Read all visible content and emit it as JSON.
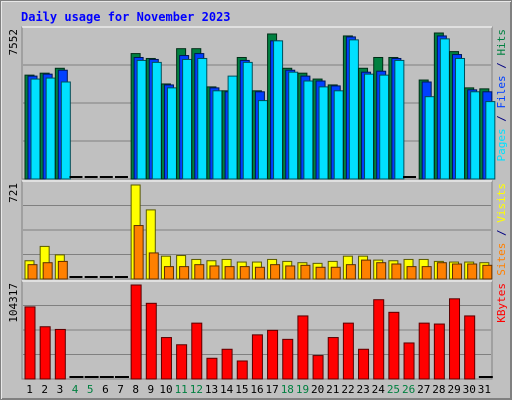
{
  "colors": {
    "background": "#c0c0c0",
    "panel": "#c0c0c0",
    "title": "#0000ff",
    "hits": "#008040",
    "files": "#0040ff",
    "pages": "#00e0ff",
    "visits": "#ffff00",
    "sites": "#ff8000",
    "kbytes": "#ff0000",
    "weekend_label": "#008040",
    "axis_label": "#000000"
  },
  "chart_data": {
    "type": "bar",
    "title": "Daily usage for November 2023",
    "categories": [
      "1",
      "2",
      "3",
      "4",
      "5",
      "6",
      "7",
      "8",
      "9",
      "10",
      "11",
      "12",
      "13",
      "14",
      "15",
      "16",
      "17",
      "18",
      "19",
      "20",
      "21",
      "22",
      "23",
      "24",
      "25",
      "26",
      "27",
      "28",
      "29",
      "30",
      "31"
    ],
    "weekend_days": [
      "4",
      "5",
      "11",
      "12",
      "18",
      "19",
      "25",
      "26"
    ],
    "panels": [
      {
        "ymax_label": "7552",
        "ymax": 7552,
        "legend": [
          "Pages",
          "Files",
          "Hits"
        ],
        "legend_sep": " / ",
        "series": [
          {
            "name": "Hits",
            "values": [
              5300,
              5400,
              5650,
              0,
              0,
              0,
              0,
              6400,
              6150,
              4850,
              6650,
              6650,
              4700,
              4500,
              6200,
              4500,
              7400,
              5650,
              5400,
              5100,
              4800,
              7300,
              5650,
              6200,
              6200,
              0,
              5050,
              7450,
              6500,
              4650,
              4600
            ]
          },
          {
            "name": "Files",
            "values": [
              5250,
              5350,
              5550,
              0,
              0,
              0,
              0,
              6200,
              6100,
              4800,
              6300,
              6400,
              4650,
              4450,
              6050,
              4450,
              7050,
              5550,
              5250,
              5000,
              4750,
              7250,
              5450,
              5500,
              6150,
              0,
              4950,
              7300,
              6350,
              4550,
              4450
            ]
          },
          {
            "name": "Pages",
            "values": [
              5100,
              5150,
              4950,
              0,
              0,
              0,
              0,
              6050,
              5950,
              4650,
              6100,
              6150,
              4500,
              5250,
              5950,
              4000,
              7050,
              5450,
              5000,
              4700,
              4500,
              7100,
              5350,
              5300,
              6050,
              0,
              4200,
              7150,
              6150,
              4450,
              3950
            ]
          }
        ]
      },
      {
        "ymax_label": "721",
        "ymax": 721,
        "legend": [
          "Sites",
          "Visits"
        ],
        "legend_sep": " / ",
        "series": [
          {
            "name": "Visits",
            "values": [
              140,
              250,
              185,
              0,
              0,
              0,
              0,
              721,
              530,
              175,
              180,
              150,
              140,
              150,
              130,
              130,
              150,
              135,
              125,
              120,
              135,
              175,
              175,
              145,
              140,
              150,
              150,
              135,
              130,
              130,
              125
            ]
          },
          {
            "name": "Sites",
            "values": [
              110,
              125,
              135,
              0,
              0,
              0,
              0,
              410,
              200,
              95,
              95,
              110,
              100,
              95,
              95,
              90,
              110,
              100,
              105,
              90,
              90,
              110,
              145,
              125,
              115,
              95,
              95,
              125,
              115,
              115,
              105
            ]
          }
        ]
      },
      {
        "ymax_label": "104317",
        "ymax": 104317,
        "legend": [
          "KBytes"
        ],
        "legend_sep": " / ",
        "series": [
          {
            "name": "KBytes",
            "values": [
              80000,
              58000,
              55000,
              0,
              0,
              0,
              0,
              104317,
              84000,
              46000,
              38000,
              62000,
              23000,
              33000,
              20000,
              49000,
              54000,
              44000,
              70000,
              26000,
              46000,
              62000,
              33000,
              88000,
              74000,
              40000,
              62000,
              61000,
              89000,
              70000,
              0
            ]
          }
        ]
      }
    ]
  }
}
